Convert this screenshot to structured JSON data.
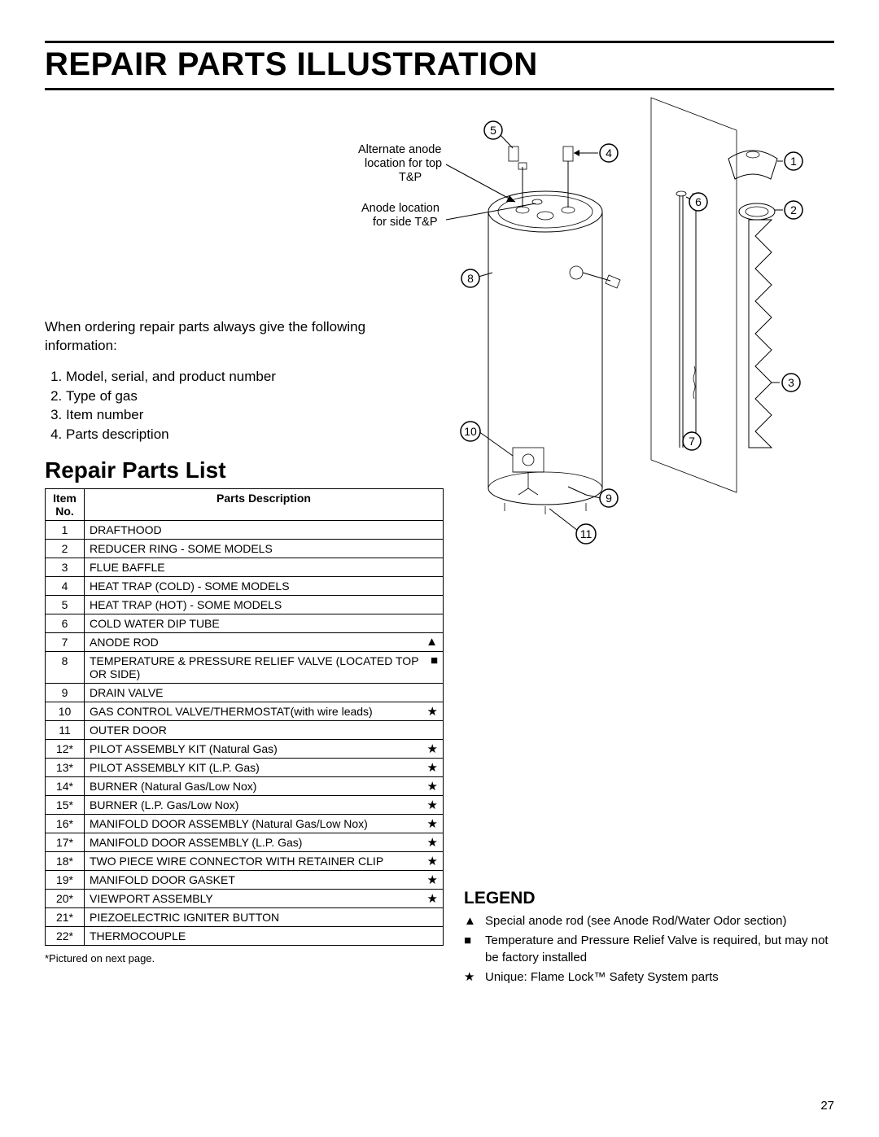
{
  "page_number": "27",
  "main_title": "REPAIR PARTS ILLUSTRATION",
  "intro_text": "When ordering repair parts always give the following information:",
  "ordering_info": [
    "Model, serial, and product number",
    "Type of gas",
    "Item number",
    "Parts description"
  ],
  "sub_title": "Repair Parts List",
  "table": {
    "header_item": "Item No.",
    "header_desc": "Parts Description",
    "rows": [
      {
        "no": "1",
        "desc": "DRAFTHOOD",
        "symbol": ""
      },
      {
        "no": "2",
        "desc": "REDUCER RING - SOME MODELS",
        "symbol": ""
      },
      {
        "no": "3",
        "desc": "FLUE BAFFLE",
        "symbol": ""
      },
      {
        "no": "4",
        "desc": "HEAT TRAP (COLD) - SOME MODELS",
        "symbol": ""
      },
      {
        "no": "5",
        "desc": "HEAT TRAP (HOT) - SOME MODELS",
        "symbol": ""
      },
      {
        "no": "6",
        "desc": "COLD WATER DIP TUBE",
        "symbol": ""
      },
      {
        "no": "7",
        "desc": "ANODE ROD",
        "symbol": "▲"
      },
      {
        "no": "8",
        "desc": "TEMPERATURE  & PRESSURE RELIEF VALVE (LOCATED TOP OR SIDE)",
        "symbol": "■"
      },
      {
        "no": "9",
        "desc": "DRAIN VALVE",
        "symbol": ""
      },
      {
        "no": "10",
        "desc": "GAS CONTROL VALVE/THERMOSTAT(with wire leads)",
        "symbol": "★"
      },
      {
        "no": "11",
        "desc": "OUTER DOOR",
        "symbol": ""
      },
      {
        "no": "12*",
        "desc": "PILOT ASSEMBLY KIT (Natural Gas)",
        "symbol": "★"
      },
      {
        "no": "13*",
        "desc": "PILOT ASSEMBLY KIT (L.P. Gas)",
        "symbol": "★"
      },
      {
        "no": "14*",
        "desc": "BURNER (Natural Gas/Low Nox)",
        "symbol": "★"
      },
      {
        "no": "15*",
        "desc": "BURNER (L.P. Gas/Low Nox)",
        "symbol": "★"
      },
      {
        "no": "16*",
        "desc": "MANIFOLD DOOR ASSEMBLY (Natural Gas/Low Nox)",
        "symbol": "★"
      },
      {
        "no": "17*",
        "desc": "MANIFOLD DOOR ASSEMBLY (L.P. Gas)",
        "symbol": "★"
      },
      {
        "no": "18*",
        "desc": "TWO PIECE WIRE CONNECTOR WITH RETAINER CLIP",
        "symbol": "★"
      },
      {
        "no": "19*",
        "desc": "MANIFOLD DOOR GASKET",
        "symbol": "★"
      },
      {
        "no": "20*",
        "desc": "VIEWPORT ASSEMBLY",
        "symbol": "★"
      },
      {
        "no": "21*",
        "desc": "PIEZOELECTRIC IGNITER  BUTTON",
        "symbol": ""
      },
      {
        "no": "22*",
        "desc": "THERMOCOUPLE",
        "symbol": ""
      }
    ]
  },
  "footnote": "*Pictured on next page.",
  "legend": {
    "title": "LEGEND",
    "items": [
      {
        "symbol": "▲",
        "text": "Special anode rod (see Anode Rod/Water Odor section)"
      },
      {
        "symbol": "■",
        "text": "Temperature and Pressure Relief Valve is required, but may not be factory installed"
      },
      {
        "symbol": "★",
        "text": "Unique: Flame Lock™ Safety System parts"
      }
    ]
  },
  "diagram": {
    "label_alt_anode_1": "Alternate anode",
    "label_alt_anode_2": "location for top",
    "label_alt_anode_3": "T&P",
    "label_anode_1": "Anode location",
    "label_anode_2": "for side T&P",
    "callouts": [
      "1",
      "2",
      "3",
      "4",
      "5",
      "6",
      "7",
      "8",
      "9",
      "10",
      "11"
    ]
  }
}
